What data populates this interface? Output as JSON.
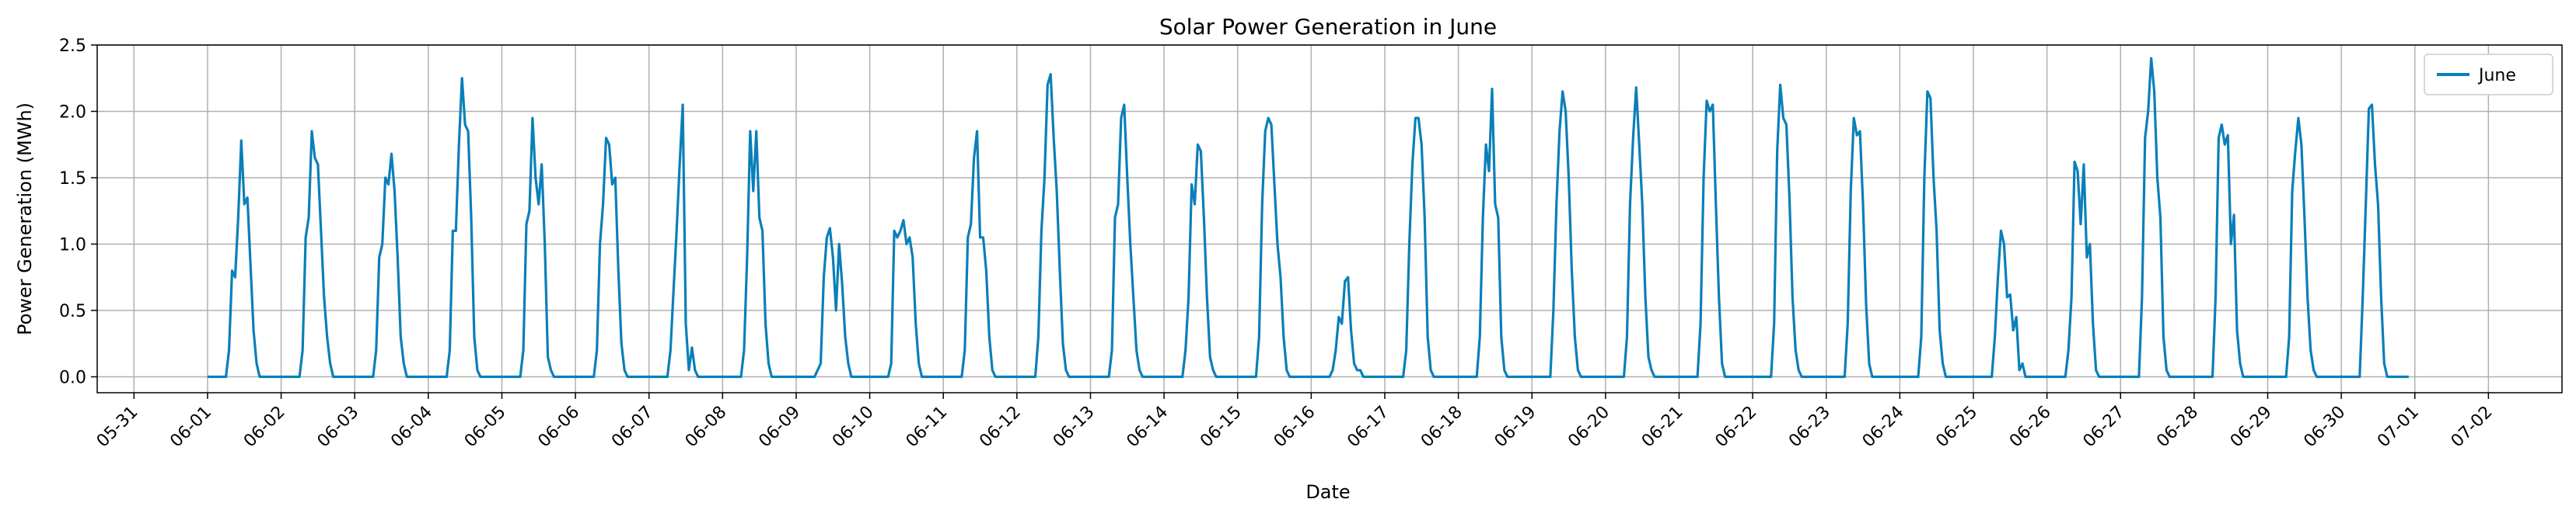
{
  "chart_data": {
    "type": "line",
    "title": "Solar Power Generation in June",
    "xlabel": "Date",
    "ylabel": "Power Generation (MWh)",
    "xlim_days": [
      -1.5,
      32.0
    ],
    "ylim": [
      -0.12,
      2.5
    ],
    "grid": true,
    "legend": {
      "position": "top-right",
      "entries": [
        "June"
      ]
    },
    "line_color": "#0a7fb9",
    "x_tick_labels": [
      "05-31",
      "06-01",
      "06-02",
      "06-03",
      "06-04",
      "06-05",
      "06-06",
      "06-07",
      "06-08",
      "06-09",
      "06-10",
      "06-11",
      "06-12",
      "06-13",
      "06-14",
      "06-15",
      "06-16",
      "06-17",
      "06-18",
      "06-19",
      "06-20",
      "06-21",
      "06-22",
      "06-23",
      "06-24",
      "06-25",
      "06-26",
      "06-27",
      "06-28",
      "06-29",
      "06-30",
      "07-01",
      "07-02"
    ],
    "y_tick_labels": [
      "0.0",
      "0.5",
      "1.0",
      "1.5",
      "2.0",
      "2.5"
    ],
    "y_tick_values": [
      0,
      0.5,
      1.0,
      1.5,
      2.0,
      2.5
    ],
    "series": [
      {
        "name": "June",
        "sampling": "daily profile from 06:00 to 19:00, 1 value per hour (14 values per day); zero outside",
        "daily_start_hour": 6,
        "days": [
          [
            0.0,
            0.2,
            0.8,
            0.75,
            1.2,
            1.78,
            1.3,
            1.35,
            0.85,
            0.35,
            0.1,
            0.0,
            0.0,
            0.0
          ],
          [
            0.0,
            0.2,
            1.05,
            1.2,
            1.85,
            1.65,
            1.6,
            1.1,
            0.6,
            0.3,
            0.1,
            0.0,
            0.0,
            0.0
          ],
          [
            0.0,
            0.2,
            0.9,
            1.0,
            1.5,
            1.45,
            1.68,
            1.4,
            0.9,
            0.3,
            0.1,
            0.0,
            0.0,
            0.0
          ],
          [
            0.0,
            0.2,
            1.1,
            1.1,
            1.75,
            2.25,
            1.9,
            1.85,
            1.2,
            0.3,
            0.05,
            0.0,
            0.0,
            0.0
          ],
          [
            0.0,
            0.2,
            1.15,
            1.25,
            1.95,
            1.5,
            1.3,
            1.6,
            1.0,
            0.15,
            0.05,
            0.0,
            0.0,
            0.0
          ],
          [
            0.0,
            0.2,
            1.0,
            1.3,
            1.8,
            1.75,
            1.45,
            1.5,
            0.8,
            0.25,
            0.05,
            0.0,
            0.0,
            0.0
          ],
          [
            0.0,
            0.2,
            0.65,
            1.1,
            1.6,
            2.05,
            0.4,
            0.05,
            0.22,
            0.05,
            0.0,
            0.0,
            0.0,
            0.0
          ],
          [
            0.0,
            0.2,
            0.9,
            1.85,
            1.4,
            1.85,
            1.2,
            1.1,
            0.4,
            0.1,
            0.0,
            0.0,
            0.0,
            0.0
          ],
          [
            0.0,
            0.05,
            0.1,
            0.75,
            1.05,
            1.12,
            0.9,
            0.5,
            1.0,
            0.7,
            0.3,
            0.1,
            0.0,
            0.0
          ],
          [
            0.0,
            0.1,
            1.1,
            1.05,
            1.1,
            1.18,
            1.0,
            1.05,
            0.9,
            0.4,
            0.1,
            0.0,
            0.0,
            0.0
          ],
          [
            0.0,
            0.2,
            1.05,
            1.15,
            1.65,
            1.85,
            1.05,
            1.05,
            0.8,
            0.3,
            0.05,
            0.0,
            0.0,
            0.0
          ],
          [
            0.0,
            0.3,
            1.1,
            1.5,
            2.2,
            2.28,
            1.8,
            1.4,
            0.8,
            0.25,
            0.05,
            0.0,
            0.0,
            0.0
          ],
          [
            0.0,
            0.2,
            1.2,
            1.3,
            1.95,
            2.05,
            1.5,
            1.0,
            0.6,
            0.2,
            0.05,
            0.0,
            0.0,
            0.0
          ],
          [
            0.0,
            0.2,
            0.6,
            1.45,
            1.3,
            1.75,
            1.7,
            1.2,
            0.6,
            0.15,
            0.05,
            0.0,
            0.0,
            0.0
          ],
          [
            0.0,
            0.3,
            1.3,
            1.85,
            1.95,
            1.9,
            1.45,
            1.0,
            0.75,
            0.3,
            0.05,
            0.0,
            0.0,
            0.0
          ],
          [
            0.0,
            0.05,
            0.2,
            0.45,
            0.4,
            0.72,
            0.75,
            0.35,
            0.1,
            0.05,
            0.05,
            0.0,
            0.0,
            0.0
          ],
          [
            0.0,
            0.2,
            1.0,
            1.6,
            1.95,
            1.95,
            1.75,
            1.2,
            0.3,
            0.05,
            0.0,
            0.0,
            0.0,
            0.0
          ],
          [
            0.0,
            0.3,
            1.2,
            1.75,
            1.55,
            2.17,
            1.3,
            1.2,
            0.3,
            0.05,
            0.0,
            0.0,
            0.0,
            0.0
          ],
          [
            0.0,
            0.5,
            1.3,
            1.85,
            2.15,
            2.0,
            1.5,
            0.8,
            0.3,
            0.05,
            0.0,
            0.0,
            0.0,
            0.0
          ],
          [
            0.0,
            0.3,
            1.3,
            1.8,
            2.18,
            1.75,
            1.3,
            0.6,
            0.15,
            0.05,
            0.0,
            0.0,
            0.0,
            0.0
          ],
          [
            0.0,
            0.4,
            1.5,
            2.08,
            2.0,
            2.05,
            1.3,
            0.6,
            0.1,
            0.0,
            0.0,
            0.0,
            0.0,
            0.0
          ],
          [
            0.0,
            0.4,
            1.7,
            2.2,
            1.95,
            1.9,
            1.35,
            0.6,
            0.2,
            0.05,
            0.0,
            0.0,
            0.0,
            0.0
          ],
          [
            0.0,
            0.4,
            1.4,
            1.95,
            1.82,
            1.85,
            1.3,
            0.55,
            0.1,
            0.0,
            0.0,
            0.0,
            0.0,
            0.0
          ],
          [
            0.0,
            0.3,
            1.5,
            2.15,
            2.1,
            1.5,
            1.1,
            0.35,
            0.1,
            0.0,
            0.0,
            0.0,
            0.0,
            0.0
          ],
          [
            0.0,
            0.3,
            0.75,
            1.1,
            1.0,
            0.6,
            0.62,
            0.35,
            0.45,
            0.05,
            0.1,
            0.0,
            0.0,
            0.0
          ],
          [
            0.0,
            0.2,
            0.6,
            1.62,
            1.55,
            1.15,
            1.6,
            0.9,
            1.0,
            0.4,
            0.05,
            0.0,
            0.0,
            0.0
          ],
          [
            0.0,
            0.6,
            1.8,
            2.0,
            2.4,
            2.15,
            1.5,
            1.2,
            0.3,
            0.05,
            0.0,
            0.0,
            0.0,
            0.0
          ],
          [
            0.0,
            0.6,
            1.8,
            1.9,
            1.75,
            1.82,
            1.0,
            1.22,
            0.35,
            0.1,
            0.0,
            0.0,
            0.0,
            0.0
          ],
          [
            0.0,
            0.3,
            1.4,
            1.7,
            1.95,
            1.75,
            1.2,
            0.6,
            0.2,
            0.05,
            0.0,
            0.0,
            0.0,
            0.0
          ],
          [
            0.0,
            0.6,
            1.3,
            2.02,
            2.05,
            1.6,
            1.3,
            0.6,
            0.1,
            0.0,
            0.0,
            0.0,
            0.0,
            0.0
          ]
        ]
      }
    ]
  }
}
